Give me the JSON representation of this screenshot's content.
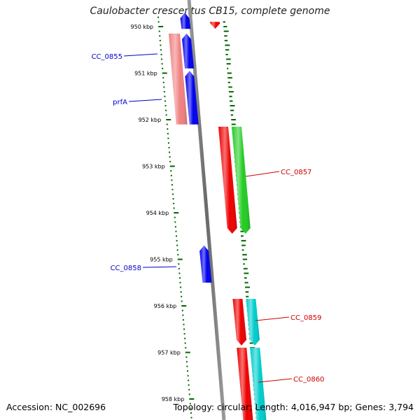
{
  "title": "Caulobacter crescentus CB15, complete genome",
  "footer": {
    "accession_label": "Accession:",
    "accession": "NC_002696",
    "topology_label": "Topology:",
    "topology": "circular",
    "length_label": "Length:",
    "length": "4,016,947 bp",
    "genes_label": "Genes:",
    "genes": "3,794"
  },
  "colors": {
    "backbone": "#808080",
    "forward_label": "#cc0000",
    "reverse_label": "#0000cc",
    "ruler_ticks": "#006600",
    "gc_ticks": "#006600"
  },
  "ruler": [
    {
      "kbp": 950,
      "label": "950 kbp"
    },
    {
      "kbp": 951,
      "label": "951 kbp"
    },
    {
      "kbp": 952,
      "label": "952 kbp"
    },
    {
      "kbp": 953,
      "label": "953 kbp"
    },
    {
      "kbp": 954,
      "label": "954 kbp"
    },
    {
      "kbp": 955,
      "label": "955 kbp"
    },
    {
      "kbp": 956,
      "label": "956 kbp"
    },
    {
      "kbp": 957,
      "label": "957 kbp"
    },
    {
      "kbp": 958,
      "label": "958 kbp"
    }
  ],
  "genes": [
    {
      "name": "",
      "strand": "-",
      "track": "inner",
      "start": 949.7,
      "end": 950.05,
      "color": "#0000ee"
    },
    {
      "name": "",
      "strand": "+",
      "track": "outer",
      "start": 949.9,
      "end": 950.05,
      "color": "#ee0000"
    },
    {
      "name": "CC_0855",
      "strand": "-",
      "track": "inner",
      "start": 950.15,
      "end": 950.9,
      "color": "#0000ee"
    },
    {
      "name": "prfA",
      "strand": "-",
      "track": "inner",
      "start": 950.95,
      "end": 952.1,
      "color": "#0000ee"
    },
    {
      "name": "",
      "strand": "-",
      "track": "rna",
      "start": 950.15,
      "end": 952.1,
      "color": "#f08080"
    },
    {
      "name": "",
      "strand": "+",
      "track": "outer",
      "start": 952.15,
      "end": 954.45,
      "color": "#ee0000"
    },
    {
      "name": "CC_0857",
      "strand": "+",
      "track": "outer2",
      "start": 952.15,
      "end": 954.45,
      "color": "#22cc22"
    },
    {
      "name": "CC_0858",
      "strand": "-",
      "track": "inner",
      "start": 954.7,
      "end": 955.5,
      "color": "#0000ee"
    },
    {
      "name": "CC_0859",
      "strand": "+",
      "track": "outer",
      "start": 955.85,
      "end": 956.85,
      "color": "#ee0000"
    },
    {
      "name": "",
      "strand": "+",
      "track": "outer2",
      "start": 955.85,
      "end": 956.85,
      "color": "#00cccc"
    },
    {
      "name": "CC_0860",
      "strand": "+",
      "track": "outer",
      "start": 956.9,
      "end": 958.6,
      "color": "#ee0000"
    },
    {
      "name": "",
      "strand": "+",
      "track": "outer2",
      "start": 956.9,
      "end": 958.6,
      "color": "#00cccc"
    }
  ]
}
